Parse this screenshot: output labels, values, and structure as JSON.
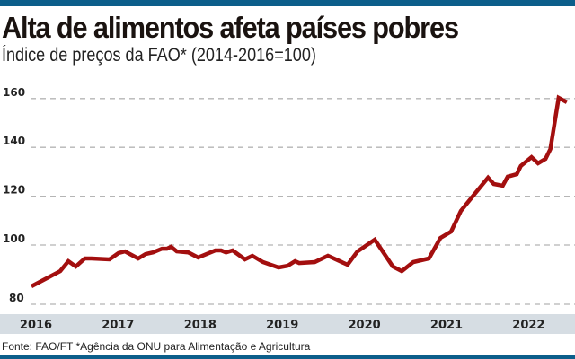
{
  "title": "Alta de alimentos afeta países pobres",
  "subtitle": "Índice de preços da FAO* (2014-2016=100)",
  "footer": "Fonte: FAO/FT *Agência da ONU para Alimentação e Agricultura",
  "colors": {
    "line": "#a30f0f",
    "accent_bar": "#0c5e8a",
    "axis_band": "#d6dde3",
    "grid": "#b5b5b5"
  },
  "chart_data": {
    "type": "line",
    "title": "Alta de alimentos afeta países pobres",
    "subtitle": "Índice de preços da FAO* (2014-2016=100)",
    "xlabel": "",
    "ylabel": "",
    "ylim": [
      80,
      160
    ],
    "xlim": [
      2016,
      2022.5
    ],
    "grid": true,
    "y_ticks": [
      80,
      100,
      120,
      140,
      160
    ],
    "x_ticks": [
      {
        "value": 2016,
        "label": "2016"
      },
      {
        "value": 2017,
        "label": "2017"
      },
      {
        "value": 2018,
        "label": "2018"
      },
      {
        "value": 2019,
        "label": "2019"
      },
      {
        "value": 2020,
        "label": "2020"
      },
      {
        "value": 2021,
        "label": "2021"
      },
      {
        "value": 2022,
        "label": "2022"
      }
    ],
    "series": [
      {
        "name": "Índice de preços da FAO",
        "points": [
          [
            2016.0,
            83.1
          ],
          [
            2016.35,
            89.3
          ],
          [
            2016.45,
            93.4
          ],
          [
            2016.54,
            91.2
          ],
          [
            2016.65,
            94.5
          ],
          [
            2016.73,
            94.5
          ],
          [
            2016.95,
            94.1
          ],
          [
            2017.06,
            96.7
          ],
          [
            2017.14,
            97.4
          ],
          [
            2017.3,
            94.5
          ],
          [
            2017.39,
            96.3
          ],
          [
            2017.48,
            97.0
          ],
          [
            2017.59,
            98.5
          ],
          [
            2017.65,
            98.5
          ],
          [
            2017.7,
            99.3
          ],
          [
            2017.77,
            97.4
          ],
          [
            2017.91,
            97.0
          ],
          [
            2018.03,
            94.9
          ],
          [
            2018.24,
            97.8
          ],
          [
            2018.31,
            97.8
          ],
          [
            2018.37,
            97.0
          ],
          [
            2018.45,
            97.8
          ],
          [
            2018.6,
            94.1
          ],
          [
            2018.69,
            95.6
          ],
          [
            2018.82,
            93.0
          ],
          [
            2019.01,
            90.8
          ],
          [
            2019.12,
            91.5
          ],
          [
            2019.21,
            93.4
          ],
          [
            2019.26,
            92.6
          ],
          [
            2019.45,
            93.0
          ],
          [
            2019.61,
            95.6
          ],
          [
            2019.85,
            91.9
          ],
          [
            2019.97,
            97.4
          ],
          [
            2020.18,
            102.2
          ],
          [
            2020.4,
            91.2
          ],
          [
            2020.51,
            89.3
          ],
          [
            2020.65,
            93.0
          ],
          [
            2020.84,
            94.5
          ],
          [
            2020.98,
            102.9
          ],
          [
            2021.11,
            105.5
          ],
          [
            2021.23,
            114.0
          ],
          [
            2021.38,
            120.2
          ],
          [
            2021.56,
            127.6
          ],
          [
            2021.63,
            125.0
          ],
          [
            2021.74,
            124.3
          ],
          [
            2021.8,
            128.0
          ],
          [
            2021.91,
            129.0
          ],
          [
            2021.96,
            132.4
          ],
          [
            2022.09,
            136.0
          ],
          [
            2022.17,
            133.5
          ],
          [
            2022.26,
            135.3
          ],
          [
            2022.32,
            139.3
          ],
          [
            2022.42,
            160.3
          ],
          [
            2022.52,
            158.5
          ]
        ]
      }
    ]
  }
}
